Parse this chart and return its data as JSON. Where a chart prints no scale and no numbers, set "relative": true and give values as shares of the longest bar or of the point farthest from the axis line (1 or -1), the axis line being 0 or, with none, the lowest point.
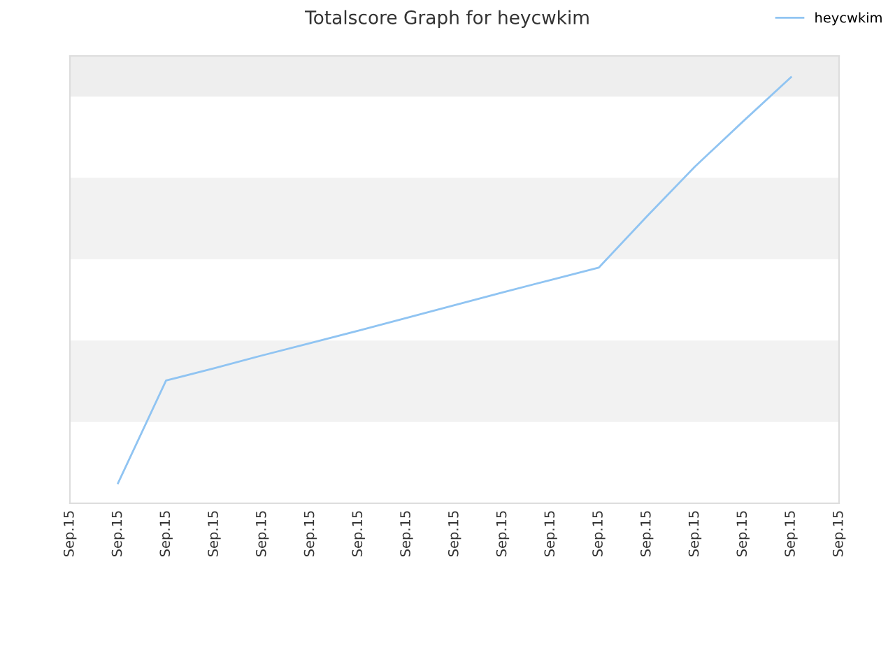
{
  "chart_data": {
    "type": "line",
    "title": "Totalscore Graph for heycwkim",
    "relative": true,
    "categories": [
      "Sep.15",
      "Sep.15",
      "Sep.15",
      "Sep.15",
      "Sep.15",
      "Sep.15",
      "Sep.15",
      "Sep.15",
      "Sep.15",
      "Sep.15",
      "Sep.15",
      "Sep.15",
      "Sep.15",
      "Sep.15",
      "Sep.15",
      "Sep.15",
      "Sep.15"
    ],
    "series": [
      {
        "name": "heycwkim",
        "color": "#90c4f2",
        "values": [
          null,
          0.047,
          0.288,
          0.317,
          0.347,
          0.376,
          0.405,
          0.435,
          0.465,
          0.495,
          0.524,
          0.553,
          0.673,
          0.79,
          0.896,
          1,
          null
        ]
      }
    ],
    "legend": "top right",
    "marker": "none",
    "line_style": "solid"
  }
}
